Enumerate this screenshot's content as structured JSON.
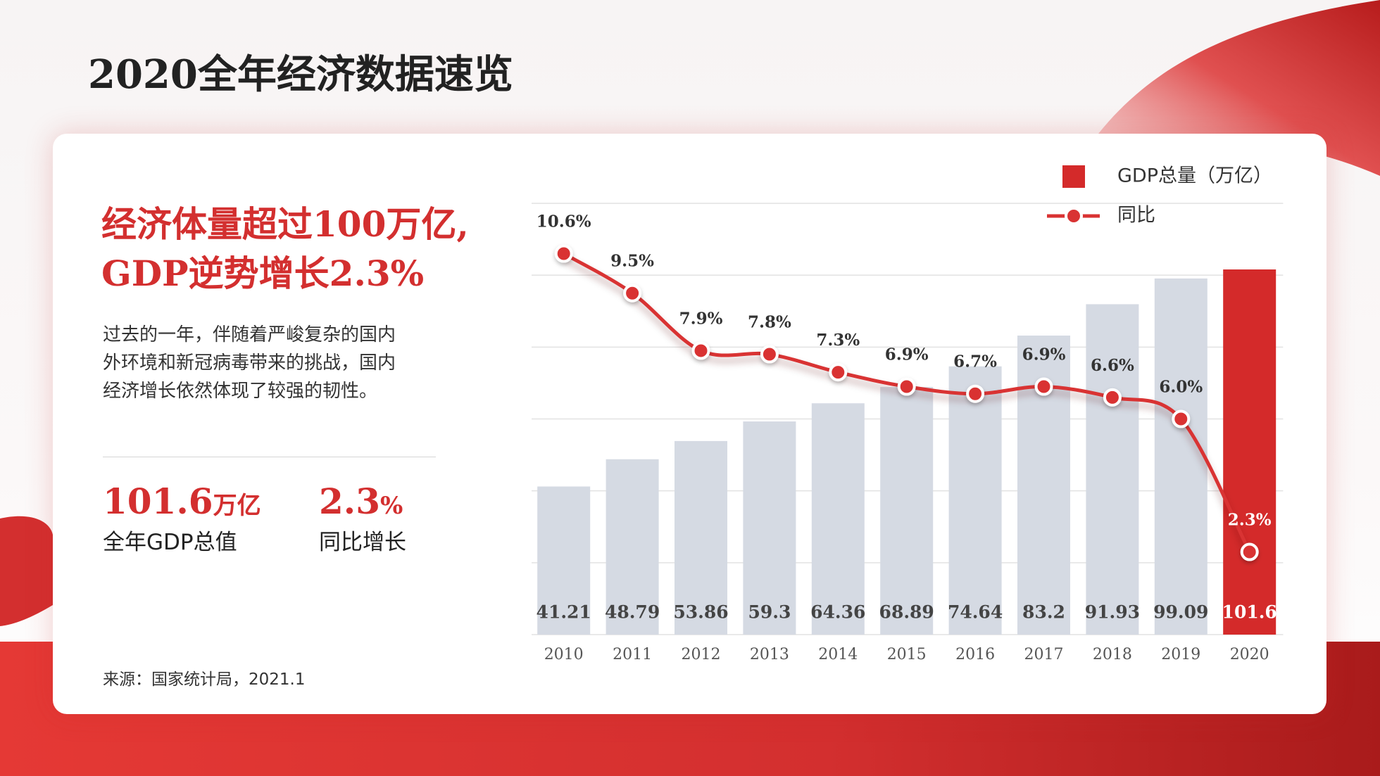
{
  "header": {
    "title": "2020全年经济数据速览"
  },
  "summary": {
    "headline": [
      "经济体量超过100万亿,",
      "GDP逆势增长2.3%"
    ],
    "paragraph": [
      "过去的一年，伴随着严峻复杂的国内",
      "外环境和新冠病毒带来的挑战，国内",
      "经济增长依然体现了较强的韧性。"
    ],
    "stats": [
      {
        "value": "101.6",
        "unit": "万亿",
        "label": "全年GDP总值"
      },
      {
        "value": "2.3",
        "unit": "%",
        "label": "同比增长"
      }
    ],
    "source": "来源：国家统计局，2021.1"
  },
  "chart_data": {
    "type": "combo",
    "categories": [
      "2010",
      "2011",
      "2012",
      "2013",
      "2014",
      "2015",
      "2016",
      "2017",
      "2018",
      "2019",
      "2020"
    ],
    "series": [
      {
        "name": "GDP总量（万亿）",
        "type": "bar",
        "color": "#d42a2a",
        "bar_colors": [
          "#d5dae3",
          "#d5dae3",
          "#d5dae3",
          "#d5dae3",
          "#d5dae3",
          "#d5dae3",
          "#d5dae3",
          "#d5dae3",
          "#d5dae3",
          "#d5dae3",
          "#d42a2a"
        ],
        "values": [
          41.21,
          48.79,
          53.86,
          59.3,
          64.36,
          68.89,
          74.64,
          83.2,
          91.93,
          99.09,
          101.6
        ]
      },
      {
        "name": "同比",
        "type": "line",
        "axis": "y2",
        "color": "#d93333",
        "values": [
          10.6,
          9.5,
          7.9,
          7.8,
          7.3,
          6.9,
          6.7,
          6.9,
          6.6,
          6.0,
          2.3
        ],
        "value_labels": [
          "10.6%",
          "9.5%",
          "7.9%",
          "7.8%",
          "7.3%",
          "6.9%",
          "6.7%",
          "6.9%",
          "6.6%",
          "6.0%",
          "2.3%"
        ]
      }
    ],
    "ylim": [
      0,
      120
    ],
    "yticks": [
      0,
      20,
      40,
      60,
      80,
      100,
      120
    ],
    "y2lim": [
      0,
      12
    ],
    "grid": true,
    "legend": "top-right"
  }
}
